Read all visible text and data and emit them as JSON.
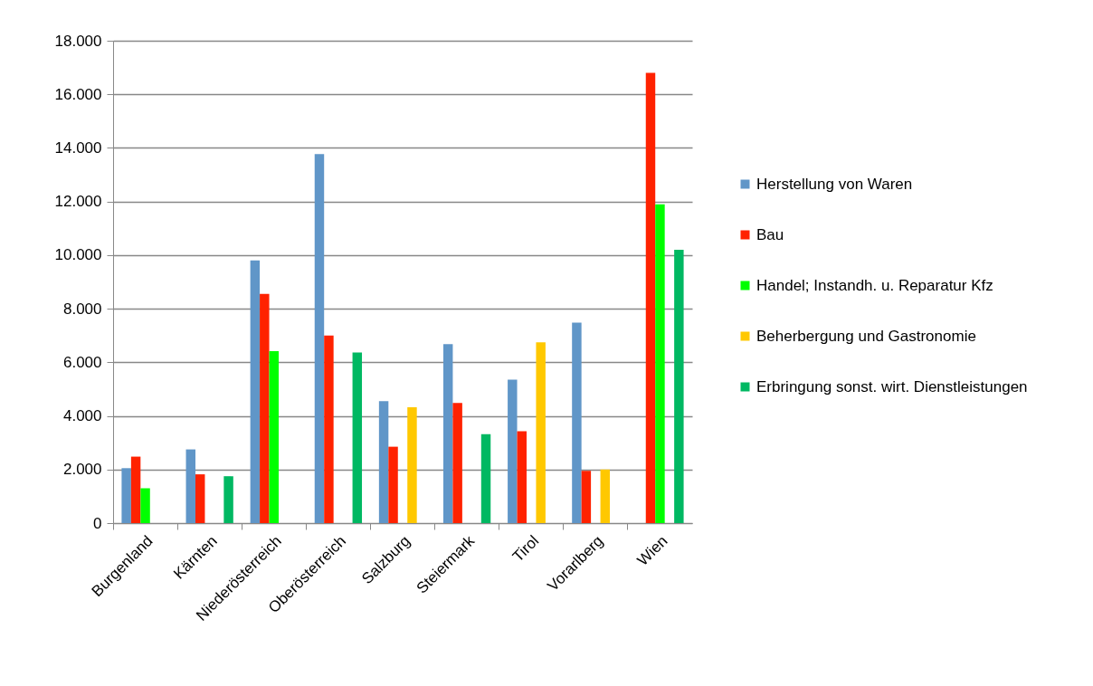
{
  "chart_data": {
    "type": "bar",
    "categories": [
      "Burgenland",
      "Kärnten",
      "Niederösterreich",
      "Oberösterreich",
      "Salzburg",
      "Steiermark",
      "Tirol",
      "Vorarlberg",
      "Wien"
    ],
    "series": [
      {
        "name": "Herstellung von Waren",
        "color": "#6096c8",
        "values": [
          2050,
          2750,
          9800,
          13770,
          4550,
          6680,
          5350,
          7480,
          null
        ]
      },
      {
        "name": "Bau",
        "color": "#ff2200",
        "values": [
          2480,
          1820,
          8550,
          7000,
          2850,
          4480,
          3430,
          1950,
          16800
        ]
      },
      {
        "name": "Handel; Instandh. u. Reparatur Kfz",
        "color": "#00ff00",
        "values": [
          1300,
          null,
          6420,
          null,
          null,
          null,
          null,
          null,
          11900
        ]
      },
      {
        "name": "Beherbergung und Gastronomie",
        "color": "#ffc800",
        "values": [
          null,
          null,
          null,
          null,
          4320,
          null,
          6750,
          2000,
          null
        ]
      },
      {
        "name": "Erbringung sonst. wirt. Dienstleistungen",
        "color": "#00b862",
        "values": [
          null,
          1750,
          null,
          6370,
          null,
          3320,
          null,
          null,
          10200
        ]
      }
    ],
    "ylim": [
      0,
      18000
    ],
    "yticks": [
      {
        "value": 0,
        "label": "0"
      },
      {
        "value": 2000,
        "label": "2.000"
      },
      {
        "value": 4000,
        "label": "4.000"
      },
      {
        "value": 6000,
        "label": "6.000"
      },
      {
        "value": 8000,
        "label": "8.000"
      },
      {
        "value": 10000,
        "label": "10.000"
      },
      {
        "value": 12000,
        "label": "12.000"
      },
      {
        "value": 14000,
        "label": "14.000"
      },
      {
        "value": 16000,
        "label": "16.000"
      },
      {
        "value": 18000,
        "label": "18.000"
      }
    ],
    "grid": "y",
    "legend": "right"
  }
}
